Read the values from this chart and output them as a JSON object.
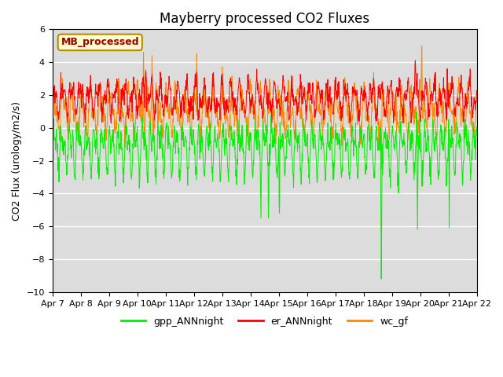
{
  "title": "Mayberry processed CO2 Fluxes",
  "ylabel": "CO2 Flux (urology/m2/s)",
  "ylim": [
    -10,
    6
  ],
  "yticks": [
    -10,
    -8,
    -6,
    -4,
    -2,
    0,
    2,
    4,
    6
  ],
  "xlabels": [
    "Apr 7",
    "Apr 8",
    "Apr 9",
    "Apr 10",
    "Apr 11",
    "Apr 12",
    "Apr 13",
    "Apr 14",
    "Apr 15",
    "Apr 16",
    "Apr 17",
    "Apr 18",
    "Apr 19",
    "Apr 20",
    "Apr 21",
    "Apr 22"
  ],
  "color_gpp": "#00ee00",
  "color_er": "#ff0000",
  "color_wc": "#ff8800",
  "legend_label": "MB_processed",
  "legend_facecolor": "#ffffcc",
  "legend_edgecolor": "#bb8800",
  "legend_textcolor": "#990000",
  "bg_color": "#dcdcdc",
  "n_points": 1500,
  "title_fontsize": 12,
  "axis_fontsize": 9,
  "tick_fontsize": 8
}
